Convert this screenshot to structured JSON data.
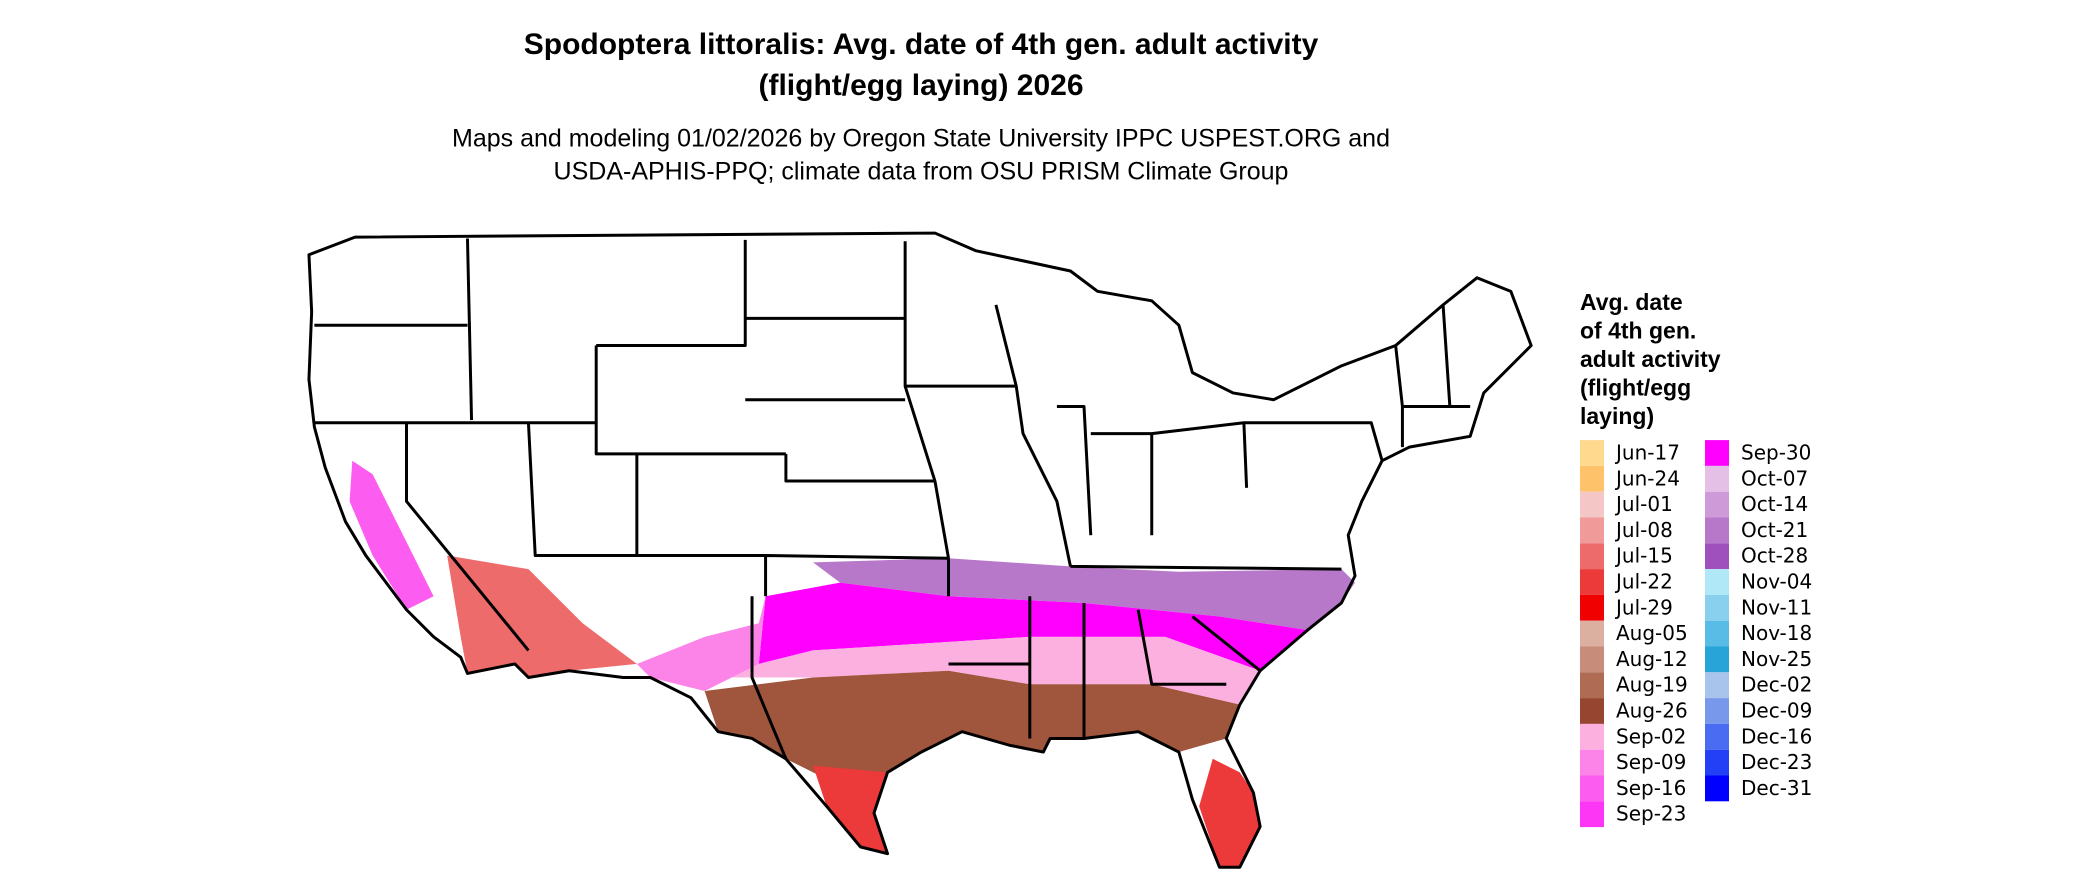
{
  "title": [
    "Spodoptera littoralis: Avg. date of 4th gen. adult activity",
    "(flight/egg laying) 2026"
  ],
  "subtitle": [
    "Maps and modeling 01/02/2026 by Oregon State University IPPC USPEST.ORG and",
    "USDA-APHIS-PPQ; climate data from OSU PRISM Climate Group"
  ],
  "legend": {
    "title": [
      "Avg. date",
      "of 4th gen.",
      "adult activity",
      "(flight/egg",
      "laying)"
    ],
    "items": [
      {
        "label": "Jun-17",
        "color": "#fed98e"
      },
      {
        "label": "Jun-24",
        "color": "#fec26a"
      },
      {
        "label": "Jul-01",
        "color": "#f4c6c6"
      },
      {
        "label": "Jul-08",
        "color": "#f09a9a"
      },
      {
        "label": "Jul-15",
        "color": "#ee6b6b"
      },
      {
        "label": "Jul-22",
        "color": "#ec3a3a"
      },
      {
        "label": "Jul-29",
        "color": "#f00000"
      },
      {
        "label": "Aug-05",
        "color": "#dbb0a0"
      },
      {
        "label": "Aug-12",
        "color": "#c88c7a"
      },
      {
        "label": "Aug-19",
        "color": "#b06b55"
      },
      {
        "label": "Aug-26",
        "color": "#964530"
      },
      {
        "label": "Sep-02",
        "color": "#fcb0e0"
      },
      {
        "label": "Sep-09",
        "color": "#fc84e8"
      },
      {
        "label": "Sep-16",
        "color": "#fc5cf0"
      },
      {
        "label": "Sep-23",
        "color": "#fc36f4"
      },
      {
        "label": "Sep-30",
        "color": "#ff00ff"
      },
      {
        "label": "Oct-07",
        "color": "#e4c0e6"
      },
      {
        "label": "Oct-14",
        "color": "#cf9ad8"
      },
      {
        "label": "Oct-21",
        "color": "#b878ca"
      },
      {
        "label": "Oct-28",
        "color": "#a050bc"
      },
      {
        "label": "Nov-04",
        "color": "#b0e8f8"
      },
      {
        "label": "Nov-11",
        "color": "#88d0ee"
      },
      {
        "label": "Nov-18",
        "color": "#58bce6"
      },
      {
        "label": "Nov-25",
        "color": "#28a4d8"
      },
      {
        "label": "Dec-02",
        "color": "#a8c4ec"
      },
      {
        "label": "Dec-09",
        "color": "#7898ec"
      },
      {
        "label": "Dec-16",
        "color": "#4a6cf2"
      },
      {
        "label": "Dec-23",
        "color": "#2440f6"
      },
      {
        "label": "Dec-31",
        "color": "#0000ff"
      }
    ]
  }
}
